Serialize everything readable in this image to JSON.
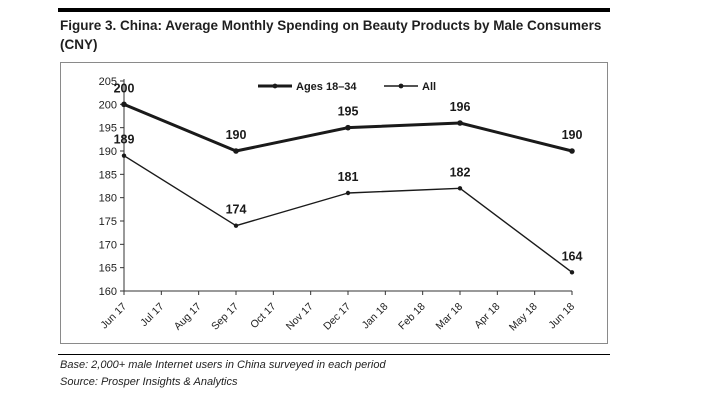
{
  "header": {
    "title": "Figure 3. China: Average Monthly Spending on Beauty Products by Male Consumers (CNY)"
  },
  "footer": {
    "base": "Base: 2,000+ male Internet users in China surveyed in each period",
    "source": "Source: Prosper Insights & Analytics"
  },
  "chart_data": {
    "type": "line",
    "title": "Figure 3. China: Average Monthly Spending on Beauty Products by Male Consumers (CNY)",
    "xlabel": "",
    "ylabel": "",
    "categories": [
      "Jun 17",
      "Jul 17",
      "Aug 17",
      "Sep 17",
      "Oct 17",
      "Nov 17",
      "Dec 17",
      "Jan 18",
      "Feb 18",
      "Mar 18",
      "Apr 18",
      "May 18",
      "Jun 18"
    ],
    "ylim": [
      160,
      205
    ],
    "yticks": [
      160,
      165,
      170,
      175,
      180,
      185,
      190,
      195,
      200,
      205
    ],
    "grid": false,
    "legend": "top-center",
    "series": [
      {
        "name": "Ages 18–34",
        "color": "#1a1a1a",
        "weight": "bold",
        "points": [
          {
            "x": "Jun 17",
            "y": 200
          },
          {
            "x": "Sep 17",
            "y": 190
          },
          {
            "x": "Dec 17",
            "y": 195
          },
          {
            "x": "Mar 18",
            "y": 196
          },
          {
            "x": "Jun 18",
            "y": 190
          }
        ]
      },
      {
        "name": "All",
        "color": "#1a1a1a",
        "weight": "normal",
        "points": [
          {
            "x": "Jun 17",
            "y": 189
          },
          {
            "x": "Sep 17",
            "y": 174
          },
          {
            "x": "Dec 17",
            "y": 181
          },
          {
            "x": "Mar 18",
            "y": 182
          },
          {
            "x": "Jun 18",
            "y": 164
          }
        ]
      }
    ]
  }
}
